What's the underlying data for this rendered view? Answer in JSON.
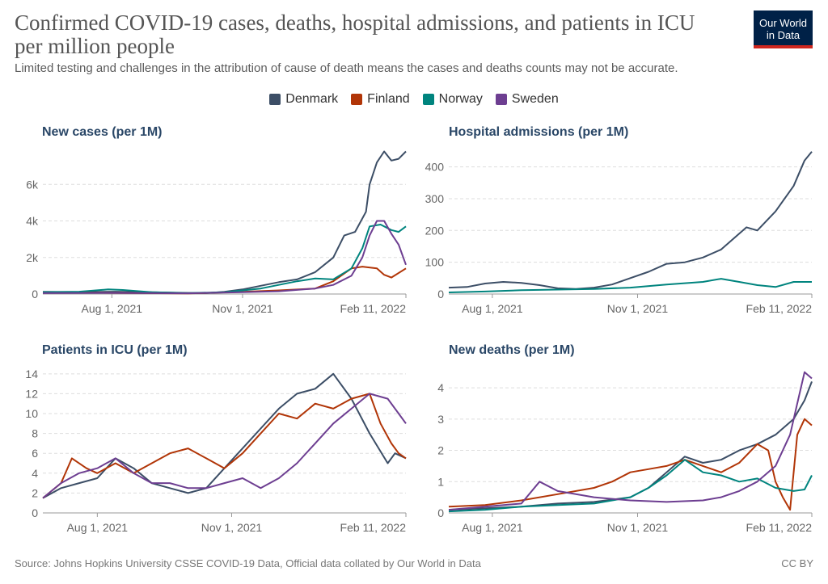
{
  "header": {
    "title": "Confirmed COVID-19 cases, deaths, hospital admissions, and patients in ICU per million people",
    "subtitle": "Limited testing and challenges in the attribution of cause of death means the cases and deaths counts may not be accurate.",
    "logo_line1": "Our World",
    "logo_line2": "in Data"
  },
  "legend": [
    {
      "name": "Denmark",
      "color": "#3c4e66"
    },
    {
      "name": "Finland",
      "color": "#b13507"
    },
    {
      "name": "Norway",
      "color": "#00847e"
    },
    {
      "name": "Sweden",
      "color": "#6d3e91"
    }
  ],
  "footer": {
    "source": "Source: Johns Hopkins University CSSE COVID-19 Data, Official data collated by Our World in Data",
    "license": "CC BY"
  },
  "chart_data": [
    {
      "type": "line",
      "title": "New cases (per 1M)",
      "x_tick_labels": [
        "Aug 1, 2021",
        "Nov 1, 2021",
        "Feb 11, 2022"
      ],
      "x_tick_pos": [
        0.19,
        0.55,
        1.0
      ],
      "y_ticks": [
        0,
        2000,
        4000,
        6000
      ],
      "y_tick_labels": [
        "0",
        "2k",
        "4k",
        "6k"
      ],
      "ylim": [
        0,
        8000
      ],
      "series": [
        {
          "name": "Denmark",
          "x": [
            0,
            0.1,
            0.2,
            0.3,
            0.4,
            0.45,
            0.5,
            0.55,
            0.6,
            0.65,
            0.7,
            0.75,
            0.8,
            0.83,
            0.86,
            0.89,
            0.9,
            0.92,
            0.94,
            0.96,
            0.98,
            1.0
          ],
          "values": [
            120,
            110,
            130,
            100,
            60,
            50,
            120,
            250,
            450,
            650,
            800,
            1200,
            2000,
            3200,
            3400,
            4500,
            6000,
            7200,
            7800,
            7300,
            7400,
            7800
          ]
        },
        {
          "name": "Finland",
          "x": [
            0,
            0.2,
            0.4,
            0.55,
            0.65,
            0.75,
            0.8,
            0.85,
            0.88,
            0.92,
            0.94,
            0.96,
            1.0
          ],
          "values": [
            80,
            60,
            30,
            120,
            200,
            300,
            700,
            1400,
            1500,
            1400,
            1050,
            900,
            1400
          ]
        },
        {
          "name": "Norway",
          "x": [
            0,
            0.1,
            0.18,
            0.22,
            0.3,
            0.4,
            0.5,
            0.6,
            0.7,
            0.75,
            0.8,
            0.85,
            0.88,
            0.9,
            0.93,
            0.96,
            0.98,
            1.0
          ],
          "values": [
            100,
            130,
            250,
            220,
            100,
            50,
            100,
            300,
            700,
            850,
            800,
            1400,
            2500,
            3700,
            3800,
            3500,
            3400,
            3700
          ]
        },
        {
          "name": "Sweden",
          "x": [
            0,
            0.2,
            0.4,
            0.55,
            0.65,
            0.75,
            0.8,
            0.85,
            0.88,
            0.9,
            0.92,
            0.94,
            0.96,
            0.98,
            1.0
          ],
          "values": [
            50,
            60,
            40,
            100,
            150,
            300,
            500,
            1000,
            2000,
            3200,
            4000,
            4000,
            3300,
            2700,
            1600
          ]
        }
      ]
    },
    {
      "type": "line",
      "title": "Hospital admissions (per 1M)",
      "x_tick_labels": [
        "Aug 1, 2021",
        "Nov 1, 2021",
        "Feb 11, 2022"
      ],
      "x_tick_pos": [
        0.12,
        0.52,
        1.0
      ],
      "y_ticks": [
        0,
        100,
        200,
        300,
        400
      ],
      "y_tick_labels": [
        "0",
        "100",
        "200",
        "300",
        "400"
      ],
      "ylim": [
        0,
        460
      ],
      "series": [
        {
          "name": "Denmark",
          "x": [
            0,
            0.05,
            0.1,
            0.15,
            0.2,
            0.25,
            0.3,
            0.35,
            0.4,
            0.45,
            0.5,
            0.55,
            0.6,
            0.65,
            0.7,
            0.75,
            0.8,
            0.82,
            0.85,
            0.9,
            0.95,
            0.98,
            1.0
          ],
          "values": [
            20,
            22,
            33,
            38,
            35,
            28,
            18,
            16,
            20,
            30,
            50,
            70,
            95,
            100,
            115,
            140,
            190,
            210,
            200,
            260,
            340,
            420,
            448
          ]
        },
        {
          "name": "Norway",
          "x": [
            0,
            0.1,
            0.2,
            0.3,
            0.4,
            0.5,
            0.6,
            0.7,
            0.75,
            0.8,
            0.85,
            0.9,
            0.95,
            1.0
          ],
          "values": [
            5,
            8,
            12,
            14,
            16,
            20,
            30,
            38,
            48,
            38,
            28,
            22,
            38,
            38
          ]
        }
      ]
    },
    {
      "type": "line",
      "title": "Patients in ICU (per 1M)",
      "x_tick_labels": [
        "Aug 1, 2021",
        "Nov 1, 2021",
        "Feb 11, 2022"
      ],
      "x_tick_pos": [
        0.15,
        0.52,
        1.0
      ],
      "y_ticks": [
        0,
        2,
        4,
        6,
        8,
        10,
        12,
        14
      ],
      "y_tick_labels": [
        "0",
        "2",
        "4",
        "6",
        "8",
        "10",
        "12",
        "14"
      ],
      "ylim": [
        0,
        14.8
      ],
      "series": [
        {
          "name": "Denmark",
          "x": [
            0,
            0.05,
            0.1,
            0.15,
            0.2,
            0.25,
            0.3,
            0.35,
            0.4,
            0.45,
            0.5,
            0.55,
            0.6,
            0.65,
            0.7,
            0.75,
            0.8,
            0.85,
            0.9,
            0.95,
            0.97,
            1.0
          ],
          "values": [
            1.5,
            2.5,
            3.0,
            3.5,
            5.5,
            4.5,
            3.0,
            2.5,
            2.0,
            2.5,
            4.5,
            6.5,
            8.5,
            10.5,
            12.0,
            12.5,
            14.0,
            11.5,
            8.0,
            5.0,
            6.0,
            5.5
          ]
        },
        {
          "name": "Finland",
          "x": [
            0,
            0.05,
            0.08,
            0.12,
            0.15,
            0.2,
            0.25,
            0.3,
            0.35,
            0.4,
            0.45,
            0.5,
            0.55,
            0.6,
            0.65,
            0.7,
            0.75,
            0.8,
            0.85,
            0.9,
            0.93,
            0.96,
            0.98,
            1.0
          ],
          "values": [
            1.5,
            3.0,
            5.5,
            4.5,
            4.0,
            5.0,
            4.0,
            5.0,
            6.0,
            6.5,
            5.5,
            4.5,
            6.0,
            8.0,
            10.0,
            9.5,
            11.0,
            10.5,
            11.5,
            12.0,
            9.0,
            7.0,
            6.0,
            5.5
          ]
        },
        {
          "name": "Sweden",
          "x": [
            0,
            0.05,
            0.1,
            0.15,
            0.2,
            0.25,
            0.3,
            0.35,
            0.4,
            0.45,
            0.5,
            0.55,
            0.6,
            0.65,
            0.7,
            0.75,
            0.8,
            0.85,
            0.9,
            0.95,
            0.98,
            1.0
          ],
          "values": [
            1.5,
            3.0,
            4.0,
            4.5,
            5.5,
            4.0,
            3.0,
            3.0,
            2.5,
            2.5,
            3.0,
            3.5,
            2.5,
            3.5,
            5.0,
            7.0,
            9.0,
            10.5,
            12.0,
            11.5,
            10.0,
            9.0
          ]
        }
      ]
    },
    {
      "type": "line",
      "title": "New deaths (per 1M)",
      "x_tick_labels": [
        "Aug 1, 2021",
        "Nov 1, 2021",
        "Feb 11, 2022"
      ],
      "x_tick_pos": [
        0.12,
        0.52,
        1.0
      ],
      "y_ticks": [
        0,
        1,
        2,
        3,
        4
      ],
      "y_tick_labels": [
        "0",
        "1",
        "2",
        "3",
        "4"
      ],
      "ylim": [
        0,
        4.7
      ],
      "series": [
        {
          "name": "Denmark",
          "x": [
            0,
            0.1,
            0.2,
            0.3,
            0.4,
            0.5,
            0.55,
            0.6,
            0.65,
            0.7,
            0.75,
            0.8,
            0.85,
            0.9,
            0.95,
            0.98,
            1.0
          ],
          "values": [
            0.1,
            0.15,
            0.2,
            0.3,
            0.35,
            0.5,
            0.8,
            1.3,
            1.8,
            1.6,
            1.7,
            2.0,
            2.2,
            2.5,
            3.0,
            3.6,
            4.2
          ]
        },
        {
          "name": "Finland",
          "x": [
            0,
            0.1,
            0.2,
            0.3,
            0.4,
            0.45,
            0.5,
            0.55,
            0.6,
            0.65,
            0.7,
            0.75,
            0.8,
            0.85,
            0.88,
            0.9,
            0.92,
            0.94,
            0.96,
            0.98,
            1.0
          ],
          "values": [
            0.2,
            0.25,
            0.4,
            0.6,
            0.8,
            1.0,
            1.3,
            1.4,
            1.5,
            1.7,
            1.5,
            1.3,
            1.6,
            2.2,
            2.0,
            1.0,
            0.5,
            0.1,
            2.5,
            3.0,
            2.8
          ]
        },
        {
          "name": "Norway",
          "x": [
            0,
            0.1,
            0.2,
            0.3,
            0.4,
            0.5,
            0.55,
            0.6,
            0.65,
            0.7,
            0.75,
            0.8,
            0.85,
            0.9,
            0.95,
            0.98,
            1.0
          ],
          "values": [
            0.05,
            0.1,
            0.2,
            0.25,
            0.3,
            0.5,
            0.8,
            1.2,
            1.7,
            1.3,
            1.2,
            1.0,
            1.1,
            0.8,
            0.7,
            0.75,
            1.2
          ]
        },
        {
          "name": "Sweden",
          "x": [
            0,
            0.1,
            0.2,
            0.25,
            0.3,
            0.4,
            0.5,
            0.6,
            0.7,
            0.75,
            0.8,
            0.85,
            0.9,
            0.94,
            0.96,
            0.98,
            1.0
          ],
          "values": [
            0.1,
            0.2,
            0.3,
            1.0,
            0.7,
            0.5,
            0.4,
            0.35,
            0.4,
            0.5,
            0.7,
            1.0,
            1.5,
            2.5,
            3.5,
            4.5,
            4.3
          ]
        }
      ]
    }
  ]
}
